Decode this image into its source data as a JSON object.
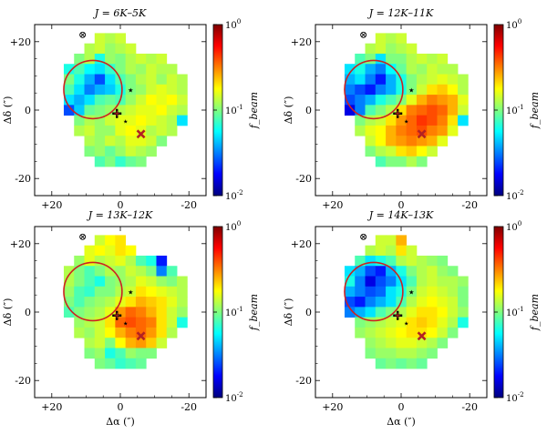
{
  "figure": {
    "colormap": [
      "#00007f",
      "#0000ff",
      "#007fff",
      "#00ffff",
      "#7fff7f",
      "#ffff00",
      "#ff7f00",
      "#ff0000",
      "#7f0000"
    ],
    "colorbar_label": "f_beam",
    "colorbar_ticks": [
      "10^0",
      "10^-1",
      "10^-2"
    ],
    "marker_color": "#b22222",
    "circle_color": "#cc2222"
  },
  "chart_data": [
    {
      "type": "heatmap",
      "title": "J = 6K–5K",
      "xlabel": "",
      "ylabel": "Δδ (″)",
      "xlim": [
        25,
        -25
      ],
      "ylim": [
        -25,
        25
      ],
      "xticks": [
        "+20",
        "0",
        "-20"
      ],
      "yticks": [
        "+20",
        "0",
        "-20"
      ],
      "log_range": [
        -2,
        0
      ],
      "x_start": 15,
      "x_step": -3,
      "y_start": 21,
      "y_step": -3,
      "grid": [
        [
          null,
          null,
          null,
          -0.85,
          -0.9,
          -0.85,
          null,
          null,
          null,
          null,
          null,
          null,
          null
        ],
        [
          null,
          null,
          -0.9,
          -0.85,
          -0.95,
          -0.9,
          -0.85,
          null,
          null,
          null,
          null,
          null,
          null
        ],
        [
          null,
          -1.0,
          -0.9,
          -1.2,
          -0.95,
          -1.0,
          -0.9,
          -0.85,
          -0.9,
          -0.85,
          null,
          null,
          null
        ],
        [
          -1.2,
          -1.1,
          -1.25,
          -1.3,
          -1.15,
          -1.0,
          -0.9,
          -0.95,
          -0.85,
          -0.9,
          -0.9,
          null,
          null
        ],
        [
          -1.0,
          -1.2,
          -1.4,
          -1.6,
          -1.3,
          -1.1,
          -1.0,
          -0.9,
          -0.85,
          -0.95,
          -0.85,
          -0.9,
          null
        ],
        [
          -1.1,
          -1.3,
          -1.5,
          -1.4,
          -1.35,
          -1.2,
          -1.0,
          -0.95,
          -0.85,
          -0.8,
          -0.85,
          -0.9,
          null
        ],
        [
          -1.3,
          -1.4,
          -1.3,
          -1.1,
          -1.05,
          -1.1,
          -0.95,
          -0.85,
          -0.75,
          -0.8,
          -0.75,
          -0.85,
          null
        ],
        [
          -1.6,
          -1.35,
          -1.05,
          -1.0,
          -0.95,
          -0.9,
          -0.85,
          -0.8,
          -0.8,
          -0.75,
          -0.85,
          -0.9,
          null
        ],
        [
          null,
          -1.0,
          -0.9,
          -0.95,
          -0.85,
          -0.8,
          -0.8,
          -0.75,
          -0.8,
          -0.85,
          -0.9,
          -1.3,
          null
        ],
        [
          null,
          -0.9,
          -0.85,
          -0.95,
          -0.95,
          -0.8,
          -0.75,
          -0.8,
          -0.9,
          -0.85,
          -0.9,
          null,
          null
        ],
        [
          null,
          null,
          -0.9,
          -0.95,
          -0.85,
          -0.9,
          -0.8,
          -0.8,
          -0.85,
          -1.0,
          null,
          null,
          null
        ],
        [
          null,
          null,
          -1.0,
          -0.95,
          -1.05,
          -0.95,
          -0.85,
          -0.9,
          -0.95,
          null,
          null,
          null,
          null
        ],
        [
          null,
          null,
          null,
          -1.1,
          -1.0,
          -1.15,
          -1.05,
          -1.0,
          null,
          null,
          null,
          null,
          null
        ]
      ]
    },
    {
      "type": "heatmap",
      "title": "J = 12K–11K",
      "xlabel": "",
      "ylabel": "Δδ (″)",
      "xlim": [
        25,
        -25
      ],
      "ylim": [
        -25,
        25
      ],
      "xticks": [
        "+20",
        "0",
        "-20"
      ],
      "yticks": [
        "+20",
        "0",
        "-20"
      ],
      "log_range": [
        -2,
        0
      ],
      "x_start": 15,
      "x_step": -3,
      "y_start": 21,
      "y_step": -3,
      "grid": [
        [
          null,
          null,
          null,
          -0.85,
          -0.9,
          -0.85,
          null,
          null,
          null,
          null,
          null,
          null,
          null
        ],
        [
          null,
          null,
          -0.9,
          -0.85,
          -0.95,
          -0.9,
          -0.85,
          null,
          null,
          null,
          null,
          null,
          null
        ],
        [
          null,
          -1.1,
          -1.0,
          -1.3,
          -1.0,
          -1.0,
          -0.9,
          -0.85,
          -0.9,
          -0.85,
          null,
          null,
          null
        ],
        [
          -1.3,
          -1.2,
          -1.4,
          -1.5,
          -1.25,
          -1.05,
          -0.9,
          -0.95,
          -0.85,
          -0.9,
          -0.9,
          null,
          null
        ],
        [
          -1.4,
          -1.3,
          -1.5,
          -1.7,
          -1.4,
          -1.2,
          -1.0,
          -0.9,
          -0.85,
          -0.8,
          -0.85,
          -0.9,
          null
        ],
        [
          -1.5,
          -1.6,
          -1.7,
          -1.5,
          -1.4,
          -1.2,
          -1.0,
          -0.85,
          -0.7,
          -0.65,
          -0.75,
          -0.9,
          null
        ],
        [
          -1.6,
          -1.5,
          -1.4,
          -1.2,
          -1.1,
          -1.0,
          -0.8,
          -0.6,
          -0.5,
          -0.55,
          -0.6,
          -0.8,
          null
        ],
        [
          -1.8,
          -1.5,
          -1.1,
          -1.0,
          -0.9,
          -0.7,
          -0.5,
          -0.45,
          -0.4,
          -0.45,
          -0.6,
          -0.85,
          null
        ],
        [
          null,
          -1.0,
          -0.9,
          -0.85,
          -0.7,
          -0.55,
          -0.45,
          -0.35,
          -0.4,
          -0.5,
          -0.7,
          -1.3,
          null
        ],
        [
          null,
          -0.9,
          -0.8,
          -0.75,
          -0.6,
          -0.5,
          -0.45,
          -0.4,
          -0.5,
          -0.55,
          -0.8,
          null,
          null
        ],
        [
          null,
          null,
          -0.85,
          -0.75,
          -0.6,
          -0.55,
          -0.5,
          -0.55,
          -0.6,
          -0.8,
          null,
          null,
          null
        ],
        [
          null,
          null,
          -1.0,
          -0.9,
          -0.85,
          -0.7,
          -0.65,
          -0.75,
          -0.85,
          null,
          null,
          null,
          null
        ],
        [
          null,
          null,
          null,
          -1.1,
          -1.0,
          -1.0,
          -0.9,
          -1.0,
          null,
          null,
          null,
          null,
          null
        ]
      ]
    },
    {
      "type": "heatmap",
      "title": "J = 13K–12K",
      "xlabel": "Δα (″)",
      "ylabel": "Δδ (″)",
      "xlim": [
        25,
        -25
      ],
      "ylim": [
        -25,
        25
      ],
      "xticks": [
        "+20",
        "0",
        "-20"
      ],
      "yticks": [
        "+20",
        "0",
        "-20"
      ],
      "log_range": [
        -2,
        0
      ],
      "x_start": 15,
      "x_step": -3,
      "y_start": 21,
      "y_step": -3,
      "grid": [
        [
          null,
          null,
          null,
          -0.85,
          -0.75,
          -0.7,
          null,
          null,
          null,
          null,
          null,
          null,
          null
        ],
        [
          null,
          null,
          -0.8,
          -0.75,
          -0.8,
          -0.7,
          -0.75,
          null,
          null,
          null,
          null,
          null,
          null
        ],
        [
          null,
          -0.95,
          -0.8,
          -0.9,
          -0.85,
          -0.8,
          -0.9,
          -1.1,
          -1.2,
          -1.7,
          null,
          null,
          null
        ],
        [
          -0.9,
          -1.0,
          -1.1,
          -1.0,
          -0.9,
          -0.95,
          -0.85,
          -0.9,
          -1.0,
          -1.5,
          -1.1,
          null,
          null
        ],
        [
          -0.9,
          -1.0,
          -1.1,
          -1.2,
          -1.0,
          -0.95,
          -0.9,
          -0.8,
          -0.85,
          -0.95,
          -1.0,
          -0.9,
          null
        ],
        [
          -0.95,
          -1.1,
          -1.15,
          -1.0,
          -1.0,
          -0.9,
          -0.85,
          -0.7,
          -0.75,
          -0.8,
          -0.85,
          -0.9,
          null
        ],
        [
          -1.0,
          -1.1,
          -1.0,
          -0.95,
          -0.9,
          -0.8,
          -0.7,
          -0.6,
          -0.65,
          -0.7,
          -0.8,
          -0.9,
          null
        ],
        [
          -1.1,
          -1.0,
          -0.95,
          -0.9,
          -0.8,
          -0.55,
          -0.45,
          -0.5,
          -0.6,
          -0.7,
          -0.85,
          -0.95,
          null
        ],
        [
          null,
          -0.95,
          -0.9,
          -0.85,
          -0.7,
          -0.45,
          -0.4,
          -0.45,
          -0.5,
          -0.7,
          -0.85,
          -1.2,
          null
        ],
        [
          null,
          -0.9,
          -0.95,
          -0.85,
          -0.75,
          -0.6,
          -0.5,
          -0.45,
          -0.55,
          -0.7,
          -0.9,
          null,
          null
        ],
        [
          null,
          null,
          -0.9,
          -0.85,
          -1.0,
          -0.75,
          -0.6,
          -0.55,
          -0.65,
          -0.85,
          null,
          null,
          null
        ],
        [
          null,
          null,
          -1.0,
          -0.95,
          -1.2,
          -1.1,
          -0.95,
          -1.0,
          -1.0,
          null,
          null,
          null,
          null
        ],
        [
          null,
          null,
          null,
          -1.0,
          -1.05,
          -1.15,
          -1.1,
          -1.05,
          null,
          null,
          null,
          null,
          null
        ]
      ]
    },
    {
      "type": "heatmap",
      "title": "J = 14K–13K",
      "xlabel": "Δα (″)",
      "ylabel": "Δδ (″)",
      "xlim": [
        25,
        -25
      ],
      "ylim": [
        -25,
        25
      ],
      "xticks": [
        "+20",
        "0",
        "-20"
      ],
      "yticks": [
        "+20",
        "0",
        "-20"
      ],
      "log_range": [
        -2,
        0
      ],
      "x_start": 15,
      "x_step": -3,
      "y_start": 21,
      "y_step": -3,
      "grid": [
        [
          null,
          null,
          null,
          -0.85,
          -0.85,
          -0.6,
          null,
          null,
          null,
          null,
          null,
          null,
          null
        ],
        [
          null,
          null,
          -0.9,
          -0.85,
          -0.9,
          -0.7,
          -0.85,
          null,
          null,
          null,
          null,
          null,
          null
        ],
        [
          null,
          -1.1,
          -1.3,
          -1.2,
          -1.1,
          -0.9,
          -0.85,
          -0.9,
          -0.95,
          -1.0,
          null,
          null,
          null
        ],
        [
          -1.3,
          -1.4,
          -1.6,
          -1.7,
          -1.4,
          -1.2,
          -1.0,
          -0.9,
          -0.85,
          -0.95,
          -1.0,
          null,
          null
        ],
        [
          -1.2,
          -1.5,
          -1.8,
          -1.6,
          -1.5,
          -1.3,
          -1.1,
          -0.9,
          -0.85,
          -0.9,
          -0.9,
          -0.95,
          null
        ],
        [
          -1.4,
          -1.5,
          -1.6,
          -1.55,
          -1.3,
          -1.2,
          -1.0,
          -0.85,
          -0.8,
          -0.85,
          -0.9,
          -1.0,
          null
        ],
        [
          -1.6,
          -1.7,
          -1.5,
          -1.4,
          -1.3,
          -1.1,
          -0.9,
          -0.8,
          -0.75,
          -0.8,
          -0.85,
          -1.0,
          null
        ],
        [
          -1.5,
          -1.4,
          -1.3,
          -1.1,
          -1.0,
          -0.9,
          -0.8,
          -0.7,
          -0.7,
          -0.75,
          -0.85,
          -0.95,
          null
        ],
        [
          null,
          -1.0,
          -0.95,
          -0.9,
          -0.85,
          -0.8,
          -0.7,
          -0.65,
          -0.7,
          -0.8,
          -0.9,
          -1.2,
          null
        ],
        [
          null,
          -0.95,
          -0.9,
          -0.85,
          -0.8,
          -0.75,
          -0.7,
          -0.7,
          -0.75,
          -0.85,
          -1.0,
          null,
          null
        ],
        [
          null,
          null,
          -0.95,
          -0.9,
          -0.85,
          -0.8,
          -0.8,
          -0.85,
          -0.9,
          -1.0,
          null,
          null,
          null
        ],
        [
          null,
          null,
          -1.0,
          -0.95,
          -0.95,
          -0.9,
          -0.9,
          -0.95,
          -1.0,
          null,
          null,
          null,
          null
        ],
        [
          null,
          null,
          null,
          -1.05,
          -1.0,
          -1.05,
          -1.0,
          -1.05,
          null,
          null,
          null,
          null,
          null
        ]
      ]
    }
  ]
}
